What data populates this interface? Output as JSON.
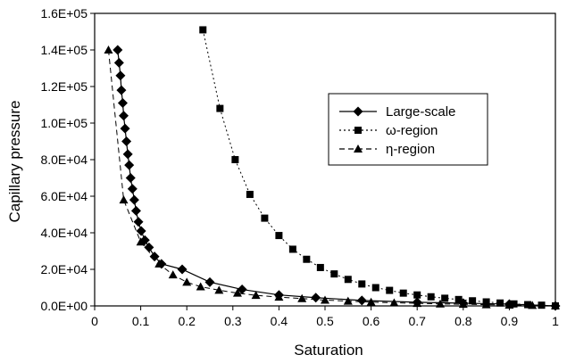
{
  "chart_data": {
    "type": "line",
    "title": "",
    "xlabel": "Saturation",
    "ylabel": "Capillary pressure",
    "xlim": [
      0,
      1.0
    ],
    "ylim": [
      0,
      160000
    ],
    "x_ticks": [
      "0",
      "0.1",
      "0.2",
      "0.3",
      "0.4",
      "0.5",
      "0.6",
      "0.7",
      "0.8",
      "0.9",
      "1"
    ],
    "y_ticks": [
      "0.0E+00",
      "2.0E+04",
      "4.0E+04",
      "6.0E+04",
      "8.0E+04",
      "1.0E+05",
      "1.2E+05",
      "1.4E+05",
      "1.6E+05"
    ],
    "grid": false,
    "legend_position": "right",
    "series": [
      {
        "name": "Large-scale",
        "marker": "diamond",
        "line": "solid",
        "color": "#000000",
        "points": [
          [
            0.05,
            140000
          ],
          [
            0.053,
            133000
          ],
          [
            0.056,
            126000
          ],
          [
            0.058,
            118000
          ],
          [
            0.061,
            111000
          ],
          [
            0.063,
            104000
          ],
          [
            0.066,
            97000
          ],
          [
            0.069,
            90000
          ],
          [
            0.072,
            83000
          ],
          [
            0.075,
            77000
          ],
          [
            0.078,
            70000
          ],
          [
            0.082,
            64000
          ],
          [
            0.086,
            58000
          ],
          [
            0.09,
            52000
          ],
          [
            0.095,
            46000
          ],
          [
            0.101,
            41000
          ],
          [
            0.109,
            36000
          ],
          [
            0.118,
            32000
          ],
          [
            0.13,
            27000
          ],
          [
            0.145,
            23000
          ],
          [
            0.19,
            20000
          ],
          [
            0.25,
            13000
          ],
          [
            0.32,
            9000
          ],
          [
            0.4,
            6000
          ],
          [
            0.48,
            4500
          ],
          [
            0.58,
            3000
          ],
          [
            0.7,
            2000
          ],
          [
            0.8,
            1500
          ],
          [
            0.9,
            1000
          ],
          [
            1.0,
            0
          ]
        ]
      },
      {
        "name": "ω-region",
        "marker": "square",
        "line": "dotted",
        "color": "#000000",
        "points": [
          [
            0.235,
            151000
          ],
          [
            0.272,
            108000
          ],
          [
            0.305,
            80000
          ],
          [
            0.337,
            61000
          ],
          [
            0.369,
            48000
          ],
          [
            0.4,
            38500
          ],
          [
            0.43,
            31000
          ],
          [
            0.46,
            25500
          ],
          [
            0.49,
            21000
          ],
          [
            0.52,
            17500
          ],
          [
            0.55,
            14500
          ],
          [
            0.58,
            12000
          ],
          [
            0.61,
            10000
          ],
          [
            0.64,
            8500
          ],
          [
            0.67,
            7000
          ],
          [
            0.7,
            6000
          ],
          [
            0.73,
            5000
          ],
          [
            0.76,
            4200
          ],
          [
            0.79,
            3500
          ],
          [
            0.82,
            2800
          ],
          [
            0.85,
            2200
          ],
          [
            0.88,
            1600
          ],
          [
            0.91,
            1100
          ],
          [
            0.94,
            700
          ],
          [
            0.97,
            400
          ],
          [
            1.0,
            0
          ]
        ]
      },
      {
        "name": "η-region",
        "marker": "triangle",
        "line": "dashed",
        "color": "#000000",
        "points": [
          [
            0.03,
            140000
          ],
          [
            0.063,
            58000
          ],
          [
            0.1,
            35000
          ],
          [
            0.14,
            23000
          ],
          [
            0.17,
            17000
          ],
          [
            0.2,
            13000
          ],
          [
            0.23,
            10500
          ],
          [
            0.27,
            8600
          ],
          [
            0.31,
            7000
          ],
          [
            0.35,
            5800
          ],
          [
            0.4,
            4800
          ],
          [
            0.45,
            4000
          ],
          [
            0.5,
            3200
          ],
          [
            0.55,
            2600
          ],
          [
            0.6,
            2100
          ],
          [
            0.65,
            1700
          ],
          [
            0.7,
            1400
          ],
          [
            0.75,
            1100
          ],
          [
            0.8,
            900
          ],
          [
            0.85,
            700
          ],
          [
            0.9,
            500
          ],
          [
            0.95,
            300
          ],
          [
            1.0,
            100
          ]
        ]
      }
    ]
  }
}
